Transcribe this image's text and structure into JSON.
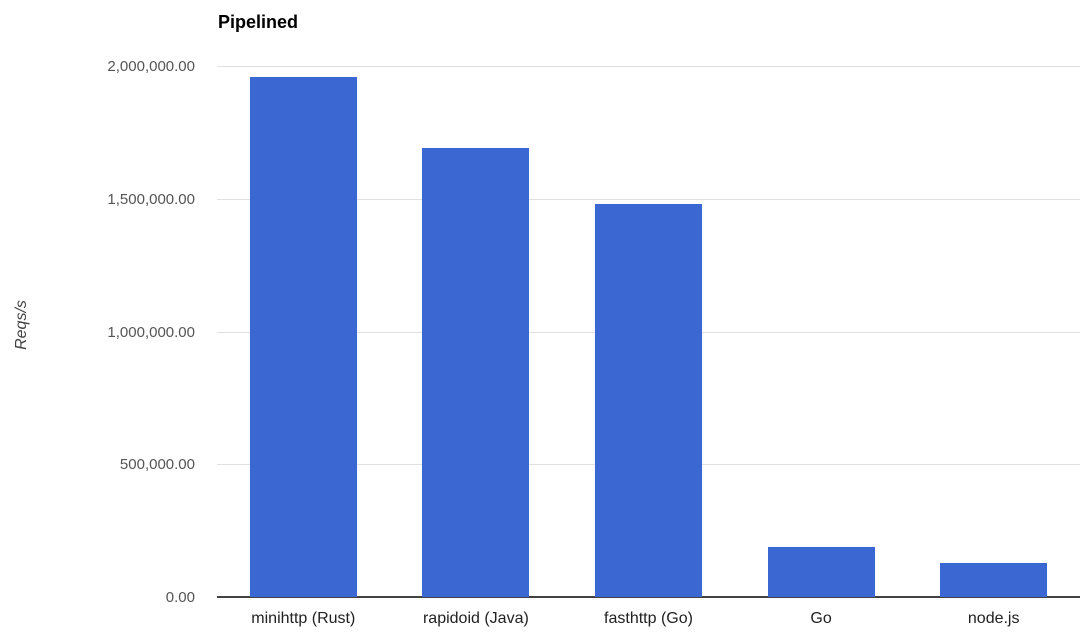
{
  "chart_data": {
    "type": "bar",
    "title": "Pipelined",
    "xlabel": "",
    "ylabel": "Reqs/s",
    "categories": [
      "minihttp (Rust)",
      "rapidoid (Java)",
      "fasthttp (Go)",
      "Go",
      "node.js"
    ],
    "values": [
      1960000,
      1690000,
      1480000,
      190000,
      130000
    ],
    "ylim": [
      0,
      2000000
    ],
    "y_ticks": [
      {
        "value": 0,
        "label": "0.00"
      },
      {
        "value": 500000,
        "label": "500,000.00"
      },
      {
        "value": 1000000,
        "label": "1,000,000.00"
      },
      {
        "value": 1500000,
        "label": "1,500,000.00"
      },
      {
        "value": 2000000,
        "label": "2,000,000.00"
      }
    ],
    "grid": true,
    "legend": "none",
    "colors": {
      "bar": "#3a67d1",
      "gridline": "#e0e0e0",
      "axis_line": "#424242",
      "title_text": "#000000",
      "tick_label_text": "#555555",
      "category_label_text": "#212121",
      "axis_title_text": "#424242",
      "background": "#ffffff"
    }
  }
}
